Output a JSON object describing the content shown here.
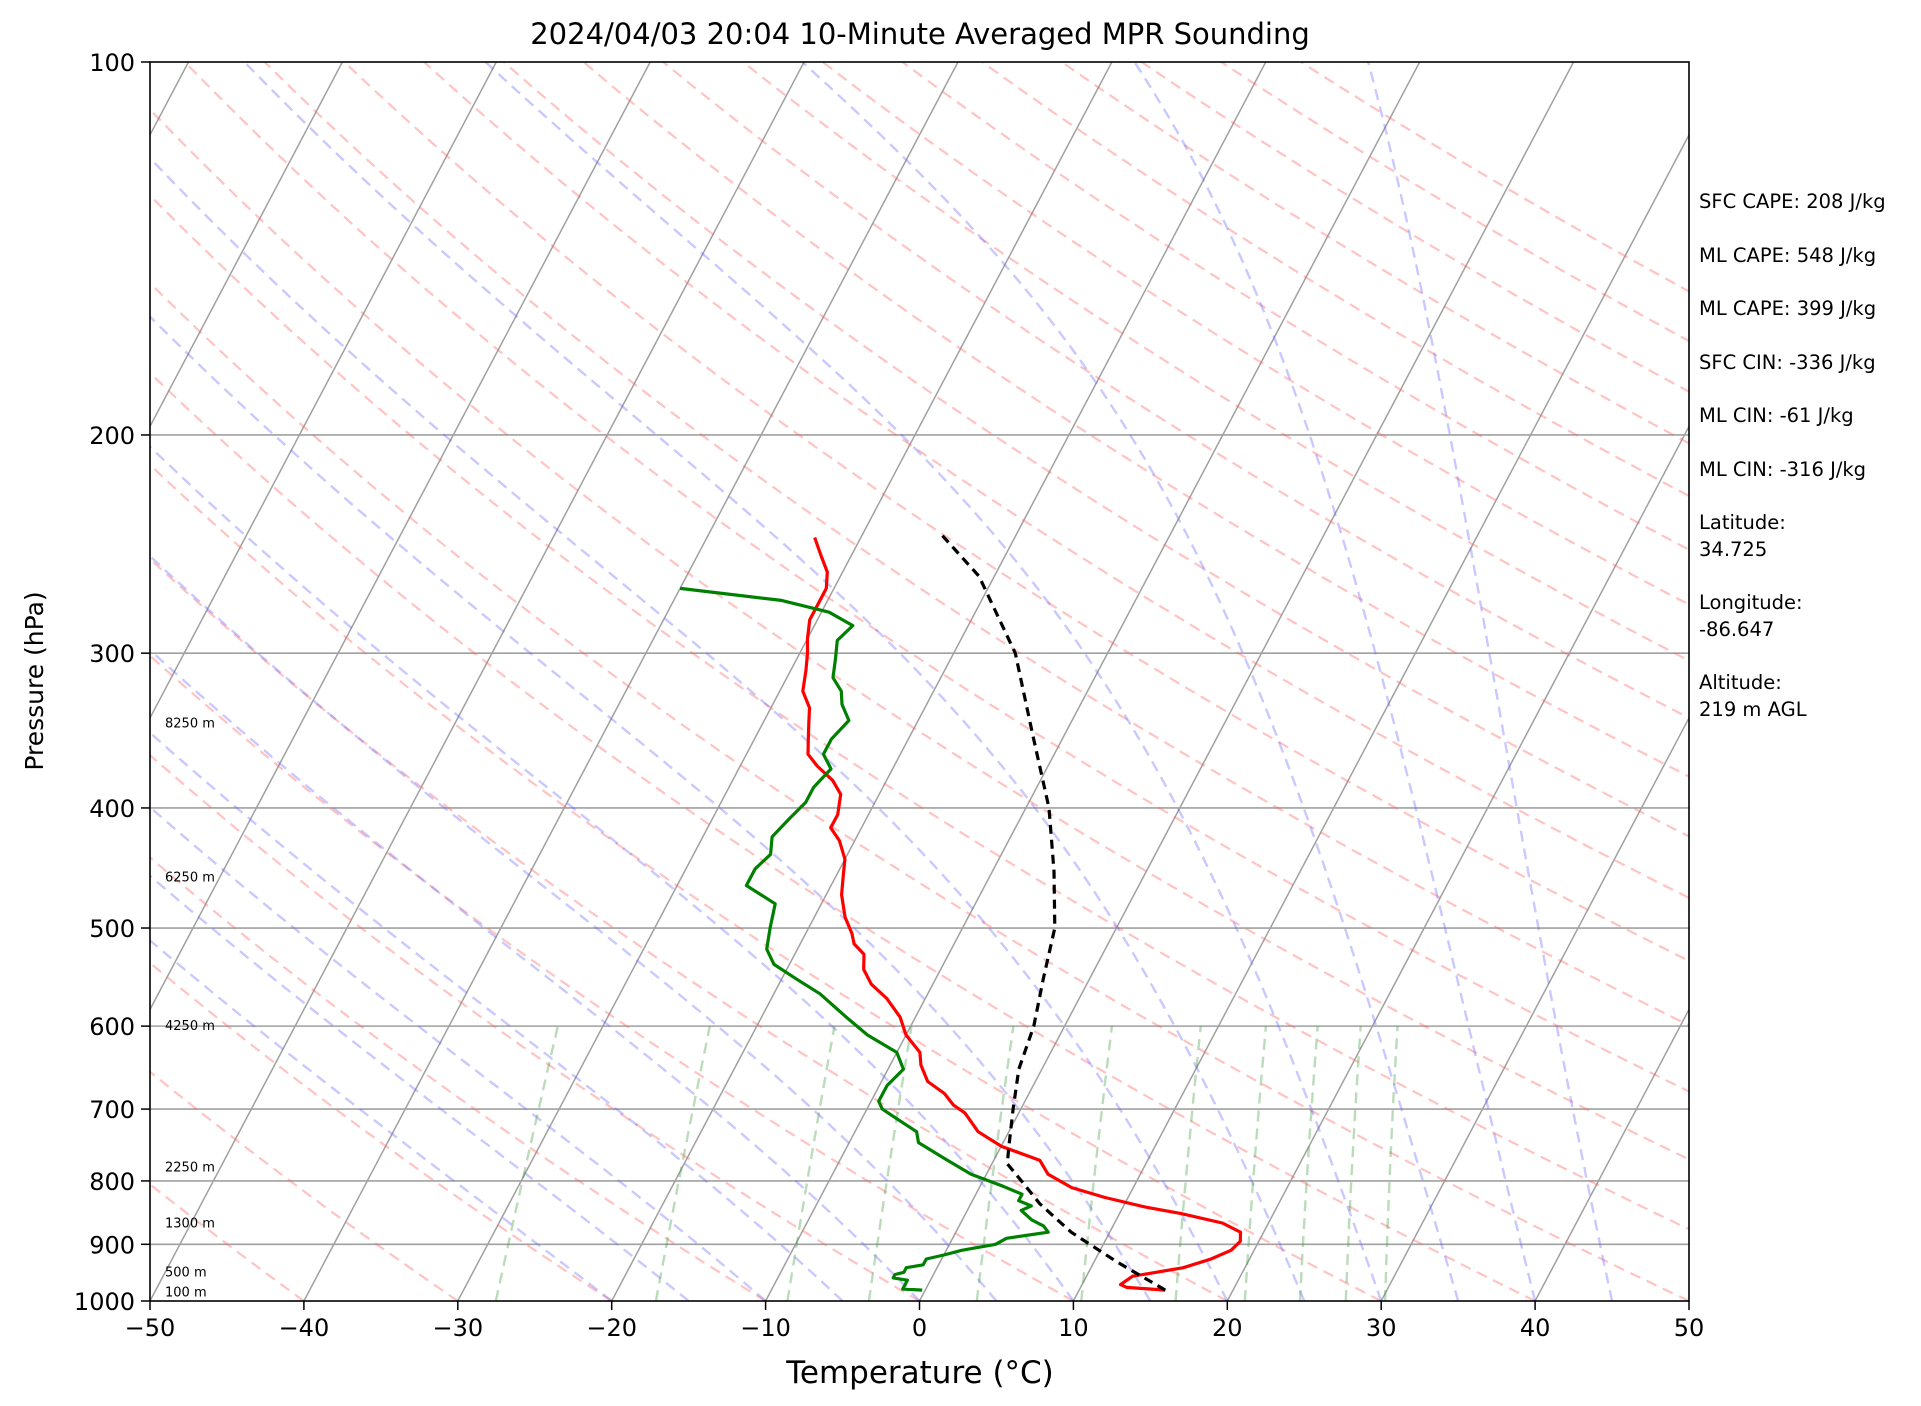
{
  "chart_data": {
    "type": "skew-t",
    "title": "2024/04/03 20:04 10-Minute Averaged MPR Sounding",
    "xlabel": "Temperature (°C)",
    "ylabel": "Pressure (hPa)",
    "xlim": [
      -50,
      50
    ],
    "ylim": [
      1000,
      100
    ],
    "y_scale": "log",
    "x_ticks": [
      -50,
      -40,
      -30,
      -20,
      -10,
      0,
      10,
      20,
      30,
      40,
      50
    ],
    "x_tick_labels": [
      "−50",
      "−40",
      "−30",
      "−20",
      "−10",
      "0",
      "10",
      "20",
      "30",
      "40",
      "50"
    ],
    "y_ticks": [
      1000,
      900,
      800,
      700,
      600,
      500,
      400,
      300,
      200,
      100
    ],
    "y_tick_labels": [
      "1000",
      "900",
      "800",
      "700",
      "600",
      "500",
      "400",
      "300",
      "200",
      "100"
    ],
    "grid": true,
    "height_labels": [
      {
        "p": 984,
        "text": "100 m"
      },
      {
        "p": 948,
        "text": "500 m"
      },
      {
        "p": 866,
        "text": "1300 m"
      },
      {
        "p": 780,
        "text": "2250 m"
      },
      {
        "p": 600,
        "text": "4250 m"
      },
      {
        "p": 455,
        "text": "6250 m"
      },
      {
        "p": 342,
        "text": "8250 m"
      }
    ],
    "series": [
      {
        "role": "temperature",
        "color": "#ff0000",
        "points": [
          [
            15.6,
            980
          ],
          [
            13.0,
            975
          ],
          [
            12.5,
            970
          ],
          [
            13.0,
            955
          ],
          [
            14.0,
            950
          ],
          [
            16.0,
            940
          ],
          [
            17.5,
            925
          ],
          [
            18.5,
            910
          ],
          [
            18.8,
            895
          ],
          [
            18.5,
            880
          ],
          [
            17.0,
            865
          ],
          [
            14.0,
            850
          ],
          [
            11.5,
            840
          ],
          [
            8.5,
            825
          ],
          [
            6.0,
            810
          ],
          [
            4.0,
            790
          ],
          [
            3.0,
            770
          ],
          [
            0.0,
            750
          ],
          [
            -2.0,
            730
          ],
          [
            -3.5,
            705
          ],
          [
            -4.5,
            695
          ],
          [
            -5.5,
            680
          ],
          [
            -7.0,
            665
          ],
          [
            -8.0,
            645
          ],
          [
            -8.5,
            630
          ],
          [
            -10.0,
            610
          ],
          [
            -11.0,
            590
          ],
          [
            -12.5,
            570
          ],
          [
            -14.0,
            555
          ],
          [
            -15.0,
            540
          ],
          [
            -15.5,
            525
          ],
          [
            -16.5,
            515
          ],
          [
            -17.0,
            505
          ],
          [
            -18.0,
            490
          ],
          [
            -19.0,
            470
          ],
          [
            -19.5,
            455
          ],
          [
            -20.0,
            440
          ],
          [
            -21.0,
            425
          ],
          [
            -22.0,
            415
          ],
          [
            -22.0,
            405
          ],
          [
            -22.5,
            390
          ],
          [
            -23.5,
            380
          ],
          [
            -25.0,
            370
          ],
          [
            -26.0,
            362
          ],
          [
            -26.5,
            352
          ],
          [
            -27.0,
            342
          ],
          [
            -27.5,
            332
          ],
          [
            -28.5,
            322
          ],
          [
            -29.0,
            310
          ],
          [
            -29.5,
            300
          ],
          [
            -30.0,
            292
          ],
          [
            -30.5,
            282
          ],
          [
            -30.5,
            274
          ],
          [
            -30.5,
            266
          ],
          [
            -31.0,
            258
          ],
          [
            -32.0,
            250
          ],
          [
            -33.0,
            242
          ]
        ]
      },
      {
        "role": "dewpoint",
        "color": "#008000",
        "points": [
          [
            -0.2,
            980
          ],
          [
            -1.5,
            978
          ],
          [
            -1.5,
            968
          ],
          [
            -1.5,
            962
          ],
          [
            -2.5,
            958
          ],
          [
            -2.5,
            952
          ],
          [
            -2.0,
            948
          ],
          [
            -2.0,
            940
          ],
          [
            -1.0,
            935
          ],
          [
            -1.0,
            925
          ],
          [
            0.0,
            918
          ],
          [
            1.0,
            910
          ],
          [
            3.0,
            900
          ],
          [
            3.5,
            890
          ],
          [
            6.0,
            880
          ],
          [
            5.5,
            870
          ],
          [
            4.5,
            860
          ],
          [
            3.5,
            845
          ],
          [
            4.0,
            838
          ],
          [
            3.0,
            830
          ],
          [
            3.0,
            820
          ],
          [
            1.5,
            808
          ],
          [
            -1.0,
            790
          ],
          [
            -3.0,
            770
          ],
          [
            -5.5,
            745
          ],
          [
            -6.0,
            730
          ],
          [
            -7.0,
            720
          ],
          [
            -9.0,
            700
          ],
          [
            -9.5,
            690
          ],
          [
            -9.5,
            670
          ],
          [
            -9.0,
            650
          ],
          [
            -10.0,
            630
          ],
          [
            -12.5,
            610
          ],
          [
            -14.5,
            590
          ],
          [
            -17.0,
            565
          ],
          [
            -19.0,
            550
          ],
          [
            -21.0,
            535
          ],
          [
            -22.0,
            520
          ],
          [
            -22.5,
            500
          ],
          [
            -23.0,
            478
          ],
          [
            -25.5,
            462
          ],
          [
            -25.5,
            448
          ],
          [
            -25.0,
            436
          ],
          [
            -25.5,
            422
          ],
          [
            -25.0,
            408
          ],
          [
            -24.5,
            396
          ],
          [
            -24.5,
            385
          ],
          [
            -24.0,
            372
          ],
          [
            -25.0,
            362
          ],
          [
            -25.0,
            352
          ],
          [
            -24.5,
            340
          ],
          [
            -25.5,
            330
          ],
          [
            -26.0,
            322
          ],
          [
            -27.0,
            314
          ],
          [
            -27.5,
            303
          ],
          [
            -28.0,
            293
          ],
          [
            -27.5,
            285
          ],
          [
            -29.5,
            278
          ],
          [
            -33.0,
            272
          ],
          [
            -40.0,
            266
          ]
        ]
      },
      {
        "role": "parcel",
        "color": "#000000",
        "points": [
          [
            15.6,
            980
          ],
          [
            11.5,
            930
          ],
          [
            7.5,
            880
          ],
          [
            4.5,
            835
          ],
          [
            2.5,
            800
          ],
          [
            1.0,
            775
          ],
          [
            0.5,
            750
          ],
          [
            -0.5,
            700
          ],
          [
            -1.5,
            650
          ],
          [
            -2.0,
            600
          ],
          [
            -3.0,
            550
          ],
          [
            -4.0,
            500
          ],
          [
            -6.0,
            450
          ],
          [
            -8.5,
            400
          ],
          [
            -12.0,
            350
          ],
          [
            -16.0,
            300
          ],
          [
            -21.0,
            260
          ],
          [
            -25.0,
            240
          ]
        ]
      }
    ]
  },
  "stats": {
    "sfc_cape": "SFC CAPE: 208 J/kg",
    "ml_cape_1": "ML CAPE: 548 J/kg",
    "ml_cape_2": "ML CAPE: 399 J/kg",
    "sfc_cin": "SFC CIN: -336 J/kg",
    "ml_cin_1": "ML CIN: -61 J/kg",
    "ml_cin_2": "ML CIN: -316 J/kg",
    "latitude_label": "Latitude:",
    "latitude_value": "34.725",
    "longitude_label": "Longitude:",
    "longitude_value": "-86.647",
    "altitude_label": "Altitude:",
    "altitude_value": "219 m AGL"
  }
}
